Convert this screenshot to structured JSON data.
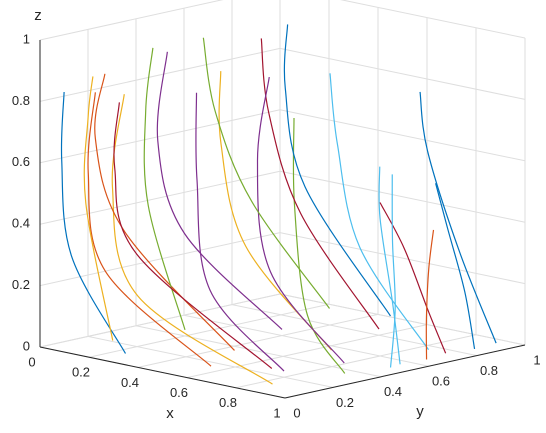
{
  "chart_data": {
    "type": "line3d",
    "xlabel": "x",
    "ylabel": "y",
    "zlabel": "z",
    "xlim": [
      0,
      1
    ],
    "ylim": [
      0,
      1
    ],
    "zlim": [
      0,
      1
    ],
    "xticks": [
      0,
      0.2,
      0.4,
      0.6,
      0.8,
      1
    ],
    "yticks": [
      0,
      0.2,
      0.4,
      0.6,
      0.8,
      1
    ],
    "zticks": [
      0,
      0.2,
      0.4,
      0.6,
      0.8,
      1
    ],
    "grid": true,
    "series": [
      {
        "color": "#0072BD",
        "x": [
          0.3,
          0.08,
          0.03,
          0.02
        ],
        "y": [
          0.05,
          0.05,
          0.06,
          0.08
        ],
        "z": [
          0.02,
          0.3,
          0.6,
          0.82
        ]
      },
      {
        "color": "#D95319",
        "x": [
          0.6,
          0.15,
          0.05,
          0.03
        ],
        "y": [
          0.1,
          0.12,
          0.15,
          0.2
        ],
        "z": [
          0.02,
          0.25,
          0.55,
          0.8
        ]
      },
      {
        "color": "#EDB120",
        "x": [
          0.9,
          0.3,
          0.1,
          0.05
        ],
        "y": [
          0.05,
          0.1,
          0.2,
          0.3
        ],
        "z": [
          0.02,
          0.2,
          0.5,
          0.78
        ]
      },
      {
        "color": "#7E2F8E",
        "x": [
          0.8,
          0.4,
          0.2,
          0.1
        ],
        "y": [
          0.2,
          0.3,
          0.45,
          0.55
        ],
        "z": [
          0.02,
          0.2,
          0.5,
          0.75
        ]
      },
      {
        "color": "#77AC30",
        "x": [
          0.95,
          0.7,
          0.5,
          0.4
        ],
        "y": [
          0.3,
          0.4,
          0.55,
          0.65
        ],
        "z": [
          0.02,
          0.15,
          0.45,
          0.7
        ]
      },
      {
        "color": "#4DBEEE",
        "x": [
          0.98,
          0.9,
          0.8,
          0.75
        ],
        "y": [
          0.5,
          0.55,
          0.6,
          0.65
        ],
        "z": [
          0.02,
          0.2,
          0.45,
          0.6
        ]
      },
      {
        "color": "#A2142F",
        "x": [
          0.97,
          0.92,
          0.85,
          0.8
        ],
        "y": [
          0.7,
          0.68,
          0.65,
          0.6
        ],
        "z": [
          0.02,
          0.15,
          0.35,
          0.5
        ]
      },
      {
        "color": "#0072BD",
        "x": [
          0.99,
          0.95,
          0.9,
          0.88
        ],
        "y": [
          0.8,
          0.8,
          0.78,
          0.75
        ],
        "z": [
          0.02,
          0.2,
          0.4,
          0.55
        ]
      },
      {
        "color": "#D95319",
        "x": [
          0.5,
          0.1,
          0.03,
          0.02
        ],
        "y": [
          0.3,
          0.25,
          0.2,
          0.25
        ],
        "z": [
          0.02,
          0.35,
          0.65,
          0.85
        ]
      },
      {
        "color": "#EDB120",
        "x": [
          0.7,
          0.35,
          0.2,
          0.15
        ],
        "y": [
          0.5,
          0.5,
          0.55,
          0.6
        ],
        "z": [
          0.02,
          0.3,
          0.6,
          0.82
        ]
      },
      {
        "color": "#7E2F8E",
        "x": [
          0.4,
          0.1,
          0.04,
          0.03
        ],
        "y": [
          0.6,
          0.5,
          0.45,
          0.5
        ],
        "z": [
          0.02,
          0.3,
          0.6,
          0.88
        ]
      },
      {
        "color": "#77AC30",
        "x": [
          0.2,
          0.05,
          0.02,
          0.02
        ],
        "y": [
          0.4,
          0.4,
          0.42,
          0.45
        ],
        "z": [
          0.02,
          0.4,
          0.7,
          0.9
        ]
      },
      {
        "color": "#4DBEEE",
        "x": [
          0.9,
          0.6,
          0.45,
          0.4
        ],
        "y": [
          0.7,
          0.72,
          0.78,
          0.8
        ],
        "z": [
          0.02,
          0.3,
          0.6,
          0.82
        ]
      },
      {
        "color": "#A2142F",
        "x": [
          0.6,
          0.3,
          0.15,
          0.1
        ],
        "y": [
          0.8,
          0.78,
          0.8,
          0.82
        ],
        "z": [
          0.02,
          0.35,
          0.65,
          0.88
        ]
      },
      {
        "color": "#0072BD",
        "x": [
          0.98,
          0.85,
          0.7,
          0.65
        ],
        "y": [
          0.9,
          0.88,
          0.9,
          0.92
        ],
        "z": [
          0.02,
          0.3,
          0.6,
          0.78
        ]
      },
      {
        "color": "#D95319",
        "x": [
          0.99,
          0.97,
          0.95,
          0.94
        ],
        "y": [
          0.6,
          0.62,
          0.65,
          0.68
        ],
        "z": [
          0.02,
          0.15,
          0.3,
          0.42
        ]
      },
      {
        "color": "#EDB120",
        "x": [
          0.15,
          0.04,
          0.02,
          0.02
        ],
        "y": [
          0.15,
          0.15,
          0.18,
          0.2
        ],
        "z": [
          0.02,
          0.45,
          0.72,
          0.85
        ]
      },
      {
        "color": "#7E2F8E",
        "x": [
          0.85,
          0.5,
          0.3,
          0.25
        ],
        "y": [
          0.4,
          0.45,
          0.6,
          0.7
        ],
        "z": [
          0.02,
          0.25,
          0.55,
          0.8
        ]
      },
      {
        "color": "#77AC30",
        "x": [
          0.3,
          0.08,
          0.03,
          0.03
        ],
        "y": [
          0.9,
          0.8,
          0.7,
          0.65
        ],
        "z": [
          0.02,
          0.35,
          0.65,
          0.9
        ]
      },
      {
        "color": "#4DBEEE",
        "x": [
          0.99,
          0.96,
          0.9,
          0.85
        ],
        "y": [
          0.45,
          0.5,
          0.55,
          0.6
        ],
        "z": [
          0.02,
          0.2,
          0.4,
          0.6
        ]
      },
      {
        "color": "#A2142F",
        "x": [
          0.75,
          0.2,
          0.06,
          0.03
        ],
        "y": [
          0.2,
          0.2,
          0.25,
          0.3
        ],
        "z": [
          0.02,
          0.3,
          0.55,
          0.75
        ]
      },
      {
        "color": "#0072BD",
        "x": [
          0.5,
          0.2,
          0.1,
          0.08
        ],
        "y": [
          0.95,
          0.9,
          0.92,
          0.95
        ],
        "z": [
          0.02,
          0.4,
          0.7,
          0.9
        ]
      }
    ]
  }
}
